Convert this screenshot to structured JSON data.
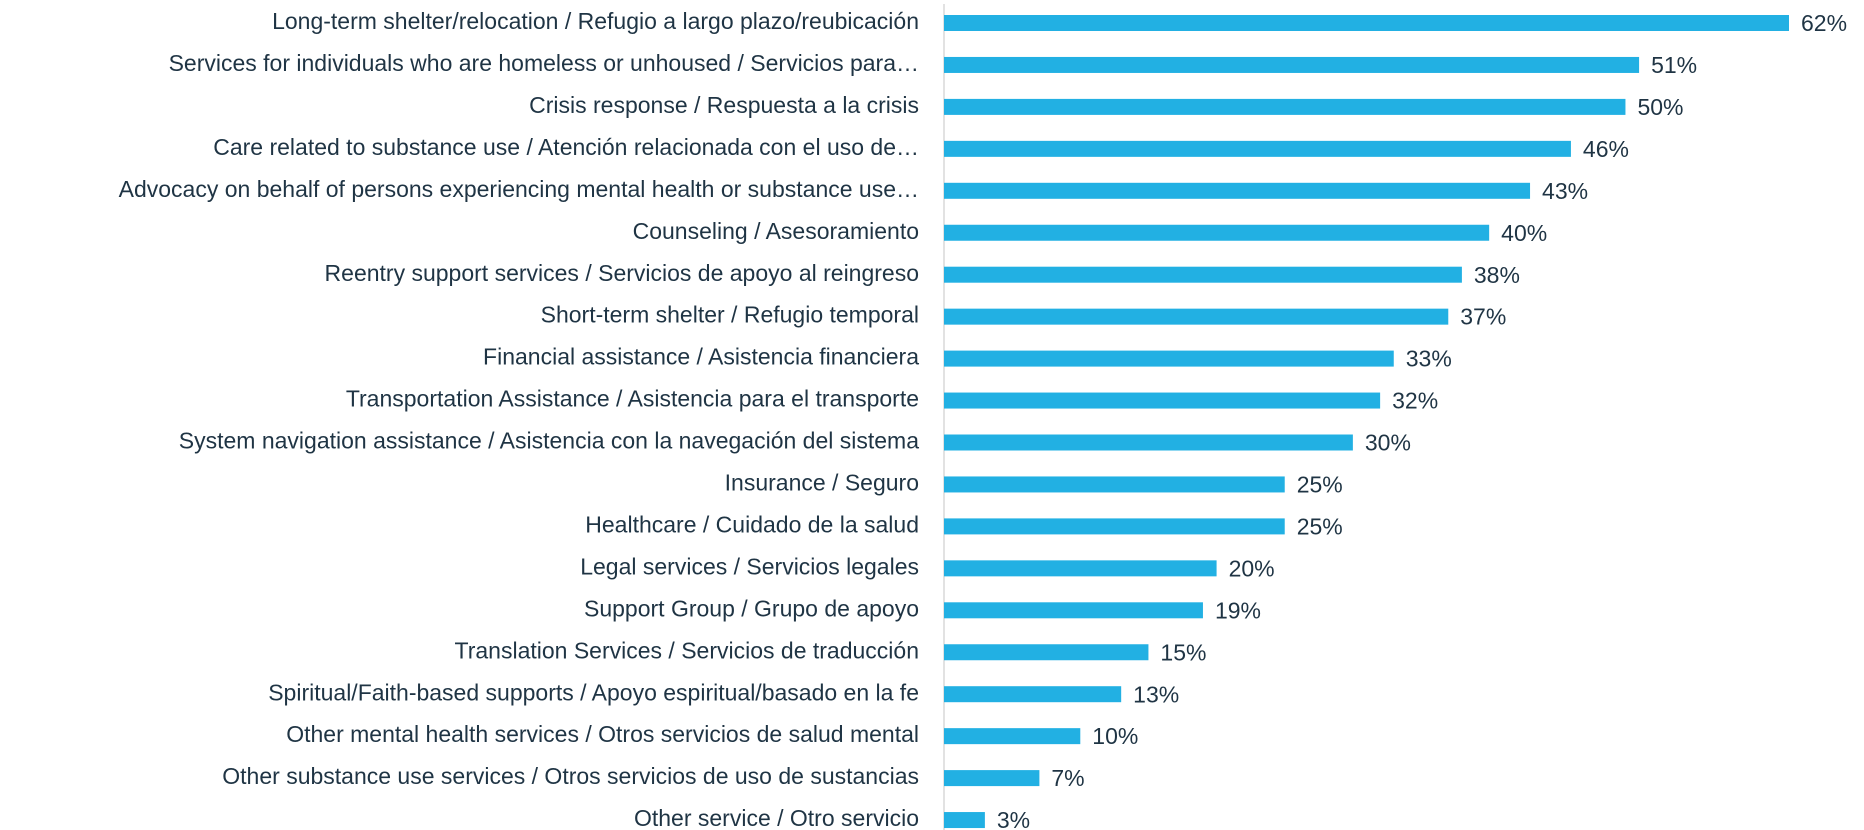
{
  "chart_data": {
    "type": "bar",
    "orientation": "horizontal",
    "color": "#22b0e3",
    "categories": [
      "Long-term shelter/relocation  /  Refugio a largo plazo/reubicación",
      "Services for individuals who are homeless or unhoused  /  Servicios para…",
      "Crisis response  /  Respuesta a la crisis",
      "Care related to substance use  /  Atención relacionada con el uso de…",
      "Advocacy on behalf of persons experiencing mental health or substance use…",
      "Counseling  /  Asesoramiento",
      "Reentry support services  /  Servicios de apoyo al reingreso",
      "Short-term shelter  /  Refugio temporal",
      "Financial assistance  /  Asistencia financiera",
      "Transportation Assistance  /  Asistencia para el transporte",
      "System navigation assistance  /  Asistencia con la navegación del sistema",
      "Insurance  /  Seguro",
      "Healthcare  /  Cuidado de la salud",
      "Legal services  /  Servicios legales",
      "Support Group  /  Grupo de apoyo",
      "Translation Services  /  Servicios de traducción",
      "Spiritual/Faith-based supports  /  Apoyo espiritual/basado en la fe",
      "Other mental health services  /  Otros servicios de salud mental",
      "Other substance use services  /  Otros servicios de uso de sustancias",
      "Other service  /  Otro servicio"
    ],
    "values": [
      62,
      51,
      50,
      46,
      43,
      40,
      38,
      37,
      33,
      32,
      30,
      25,
      25,
      20,
      19,
      15,
      13,
      10,
      7,
      3
    ],
    "value_labels": [
      "62%",
      "51%",
      "50%",
      "46%",
      "43%",
      "40%",
      "38%",
      "37%",
      "33%",
      "32%",
      "30%",
      "25%",
      "25%",
      "20%",
      "19%",
      "15%",
      "13%",
      "10%",
      "7%",
      "3%"
    ]
  }
}
